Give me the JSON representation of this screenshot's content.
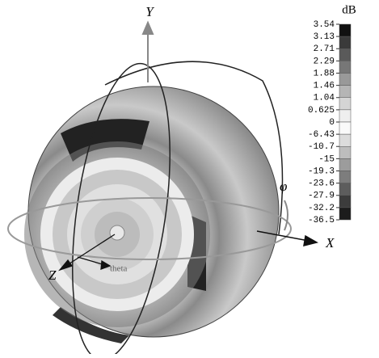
{
  "colorbar": {
    "title": "dB",
    "ticks": [
      3.54,
      3.13,
      2.71,
      2.29,
      1.88,
      1.46,
      1.04,
      0.625,
      0,
      -6.43,
      -10.7,
      -15,
      -19.3,
      -23.6,
      -27.9,
      -32.2,
      -36.5
    ]
  },
  "axes": {
    "x": "X",
    "y": "Y",
    "z": "Z",
    "phi": "φ",
    "theta": "theta"
  }
}
